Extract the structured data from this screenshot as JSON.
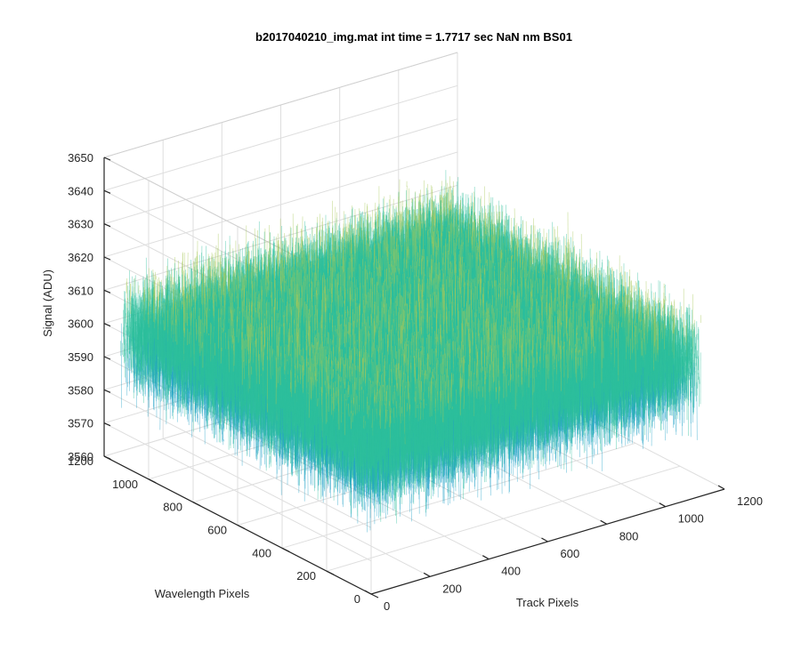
{
  "chart_data": {
    "type": "surface",
    "title": "b2017040210_img.mat int time = 1.7717 sec  NaN nm BS01",
    "xlabel": "Track Pixels",
    "ylabel": "Wavelength Pixels",
    "zlabel": "Signal (ADU)",
    "x_ticks": [
      "0",
      "200",
      "400",
      "600",
      "800",
      "1000",
      "1200"
    ],
    "y_ticks": [
      "0",
      "200",
      "400",
      "600",
      "800",
      "1000",
      "1200"
    ],
    "z_ticks": [
      "3560",
      "3570",
      "3580",
      "3590",
      "3600",
      "3610",
      "3620",
      "3630",
      "3640",
      "3650"
    ],
    "xlim": [
      0,
      1200
    ],
    "ylim": [
      0,
      1200
    ],
    "zlim": [
      3560,
      3650
    ],
    "data_extent": {
      "x": [
        0,
        1100
      ],
      "y": [
        0,
        1100
      ]
    },
    "signal_mean": 3600,
    "signal_noise_range": [
      3563,
      3640
    ],
    "colormap": [
      "#0072bd",
      "#22a3c8",
      "#2dbf9c",
      "#a8c95a",
      "#e8b93a"
    ],
    "grid": true
  }
}
